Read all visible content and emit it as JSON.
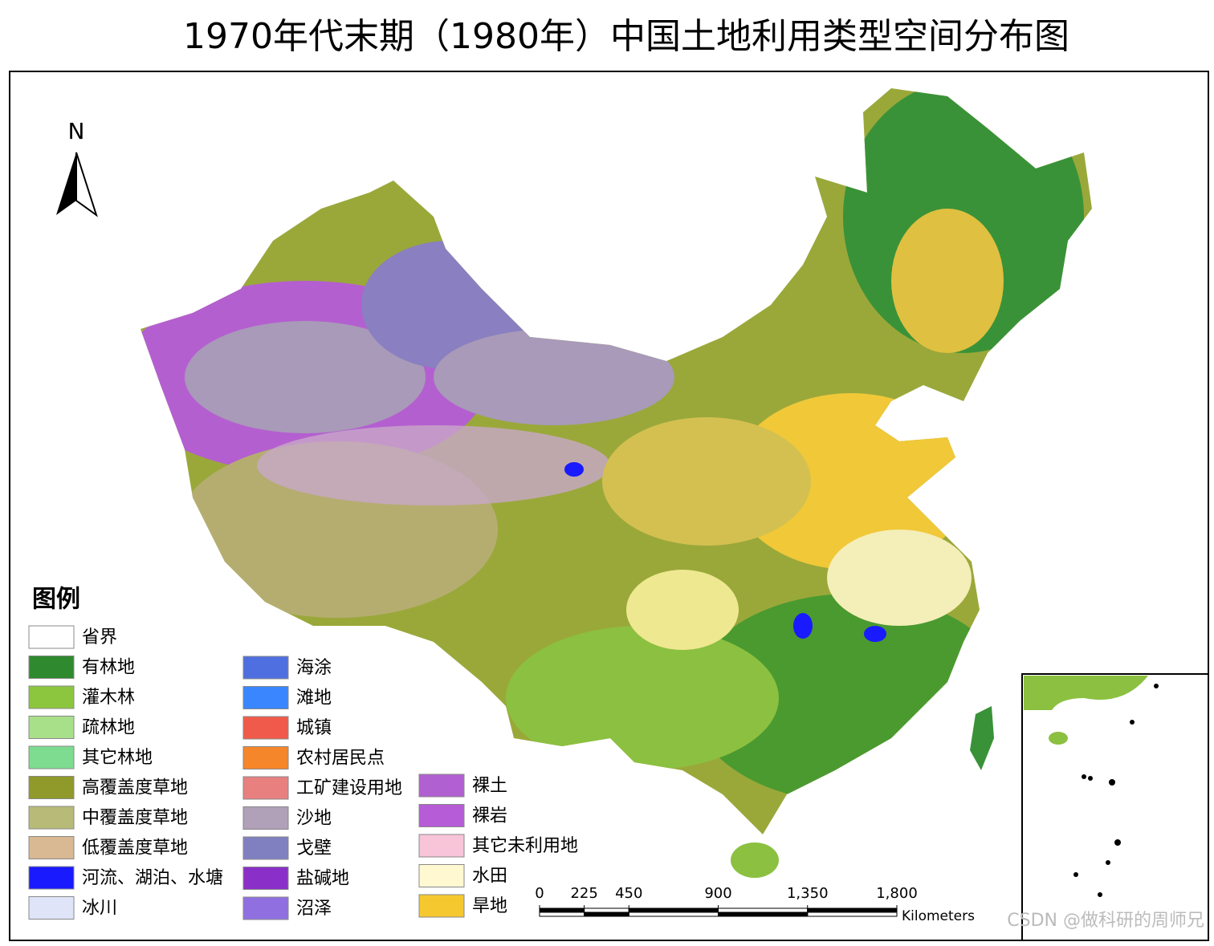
{
  "title": "1970年代末期（1980年）中国土地利用类型空间分布图",
  "north_arrow": "N",
  "legend": {
    "title": "图例",
    "items": [
      {
        "label": "省界",
        "color": "#ffffff"
      },
      {
        "label": "有林地",
        "color": "#2f8a2f"
      },
      {
        "label": "灌木林",
        "color": "#8cc63f"
      },
      {
        "label": "疏林地",
        "color": "#a8e08a"
      },
      {
        "label": "其它林地",
        "color": "#7ddc8f"
      },
      {
        "label": "高覆盖度草地",
        "color": "#8f9a2a"
      },
      {
        "label": "中覆盖度草地",
        "color": "#b8bb78"
      },
      {
        "label": "低覆盖度草地",
        "color": "#d9b894"
      },
      {
        "label": "河流、湖泊、水塘",
        "color": "#1a1aff"
      },
      {
        "label": "冰川",
        "color": "#e0e4f8"
      },
      {
        "label": "海涂",
        "color": "#4f6fe0"
      },
      {
        "label": "滩地",
        "color": "#3a86ff"
      },
      {
        "label": "城镇",
        "color": "#f05a4a"
      },
      {
        "label": "农村居民点",
        "color": "#f5862a"
      },
      {
        "label": "工矿建设用地",
        "color": "#e88080"
      },
      {
        "label": "沙地",
        "color": "#b0a0b8"
      },
      {
        "label": "戈壁",
        "color": "#8080c0"
      },
      {
        "label": "盐碱地",
        "color": "#8a30c8"
      },
      {
        "label": "沼泽",
        "color": "#9070e0"
      },
      {
        "label": "裸土",
        "color": "#b060d0"
      },
      {
        "label": "裸岩",
        "color": "#b65cd6"
      },
      {
        "label": "其它未利用地",
        "color": "#f8c4d8"
      },
      {
        "label": "水田",
        "color": "#fff8d0"
      },
      {
        "label": "旱地",
        "color": "#f5c830"
      }
    ]
  },
  "scale_bar": {
    "unit": "Kilometers",
    "ticks": [
      0,
      225,
      450,
      900,
      {
        "value": 1350,
        "label": "1,350"
      },
      {
        "value": 1800,
        "label": "1,800"
      }
    ]
  },
  "watermark": "CSDN @做科研的周师兄"
}
